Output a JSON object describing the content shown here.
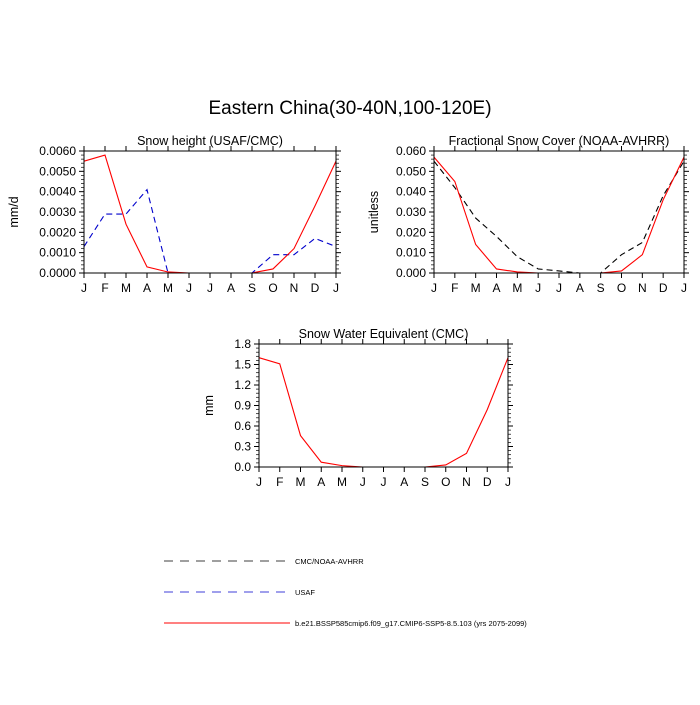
{
  "figure": {
    "title": "Eastern China(30-40N,100-120E)"
  },
  "legend": [
    {
      "label": "CMC/NOAA-AVHRR",
      "color": "#000000",
      "dash": "dashed-black"
    },
    {
      "label": "USAF",
      "color": "#0000cc",
      "dash": "dashed-blue"
    },
    {
      "label": "b.e21.BSSP585cmip6.f09_g17.CMIP6-SSP5-8.5.103 (yrs 2075-2099)",
      "color": "#ff0000",
      "dash": "solid"
    }
  ],
  "chart_data": [
    {
      "type": "line",
      "title": "Snow height (USAF/CMC)",
      "xlabel": "",
      "ylabel": "mm/d",
      "categories": [
        "J",
        "F",
        "M",
        "A",
        "M",
        "J",
        "J",
        "A",
        "S",
        "O",
        "N",
        "D",
        "J"
      ],
      "ylim": [
        0,
        0.006
      ],
      "yticks": [
        "0.0000",
        "0.0010",
        "0.0020",
        "0.0030",
        "0.0040",
        "0.0050",
        "0.0060"
      ],
      "series": [
        {
          "name": "CMC/NOAA-AVHRR",
          "color": "#000000",
          "style": "dashed",
          "values": [
            0,
            0,
            0,
            0,
            0,
            0,
            0,
            0,
            0,
            0,
            0,
            0,
            0
          ]
        },
        {
          "name": "USAF",
          "color": "#0000cc",
          "style": "dashed",
          "values": [
            0.0013,
            0.0029,
            0.0029,
            0.0041,
            0.0,
            0.0,
            0.0,
            0.0,
            0.0,
            0.0009,
            0.0009,
            0.0017,
            0.0013
          ]
        },
        {
          "name": "b.e21.BSSP585cmip6.f09_g17.CMIP6-SSP5-8.5.103 (yrs 2075-2099)",
          "color": "#ff0000",
          "style": "solid",
          "values": [
            0.0055,
            0.0058,
            0.0024,
            0.0003,
            5e-05,
            0,
            0,
            0,
            0,
            0.0002,
            0.0012,
            0.0033,
            0.0055
          ]
        }
      ]
    },
    {
      "type": "line",
      "title": "Fractional Snow Cover (NOAA-AVHRR)",
      "xlabel": "",
      "ylabel": "unitless",
      "categories": [
        "J",
        "F",
        "M",
        "A",
        "M",
        "J",
        "J",
        "A",
        "S",
        "O",
        "N",
        "D",
        "J"
      ],
      "ylim": [
        0,
        0.06
      ],
      "yticks": [
        "0.000",
        "0.010",
        "0.020",
        "0.030",
        "0.040",
        "0.050",
        "0.060"
      ],
      "series": [
        {
          "name": "CMC/NOAA-AVHRR",
          "color": "#000000",
          "style": "dashed",
          "values": [
            0.055,
            0.042,
            0.027,
            0.018,
            0.008,
            0.002,
            0.001,
            0.0,
            0.0,
            0.009,
            0.015,
            0.038,
            0.055
          ]
        },
        {
          "name": "b.e21.BSSP585cmip6.f09_g17.CMIP6-SSP5-8.5.103 (yrs 2075-2099)",
          "color": "#ff0000",
          "style": "solid",
          "values": [
            0.057,
            0.045,
            0.014,
            0.002,
            0.0005,
            0,
            0,
            0,
            0,
            0.001,
            0.009,
            0.036,
            0.057
          ]
        }
      ]
    },
    {
      "type": "line",
      "title": "Snow Water Equivalent (CMC)",
      "xlabel": "",
      "ylabel": "mm",
      "categories": [
        "J",
        "F",
        "M",
        "A",
        "M",
        "J",
        "J",
        "A",
        "S",
        "O",
        "N",
        "D",
        "J"
      ],
      "ylim": [
        0,
        1.8
      ],
      "yticks": [
        "0.0",
        "0.3",
        "0.6",
        "0.9",
        "1.2",
        "1.5",
        "1.8"
      ],
      "series": [
        {
          "name": "CMC/NOAA-AVHRR",
          "color": "#000000",
          "style": "dashed",
          "values": [
            0,
            0,
            0,
            0,
            0,
            0,
            0,
            0,
            0,
            0,
            0,
            0,
            0
          ]
        },
        {
          "name": "b.e21.BSSP585cmip6.f09_g17.CMIP6-SSP5-8.5.103 (yrs 2075-2099)",
          "color": "#ff0000",
          "style": "solid",
          "values": [
            1.6,
            1.51,
            0.46,
            0.07,
            0.02,
            0,
            0,
            0,
            0,
            0.03,
            0.2,
            0.84,
            1.6
          ]
        }
      ]
    }
  ]
}
